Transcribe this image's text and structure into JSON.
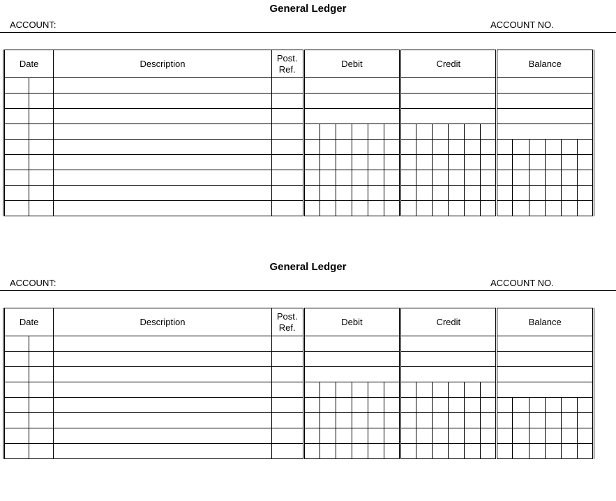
{
  "ledger1": {
    "title": "General Ledger",
    "account_label": "ACCOUNT:",
    "account_no_label": "ACCOUNT NO.",
    "headers": {
      "date": "Date",
      "description": "Description",
      "post_ref": "Post.\nRef.",
      "debit": "Debit",
      "credit": "Credit",
      "balance": "Balance"
    },
    "body_rows_merged": 3,
    "body_rows_subdivided": 6,
    "money_subcols": 5,
    "colors": {
      "border": "#000000",
      "background": "#ffffff",
      "text": "#000000"
    },
    "fonts": {
      "title_size_pt": 11,
      "title_weight": "bold",
      "body_size_pt": 10
    }
  },
  "ledger2": {
    "title": "General Ledger",
    "account_label": "ACCOUNT:",
    "account_no_label": "ACCOUNT NO.",
    "headers": {
      "date": "Date",
      "description": "Description",
      "post_ref": "Post.\nRef.",
      "debit": "Debit",
      "credit": "Credit",
      "balance": "Balance"
    },
    "body_rows_merged": 3,
    "body_rows_subdivided": 5,
    "money_subcols": 5
  }
}
